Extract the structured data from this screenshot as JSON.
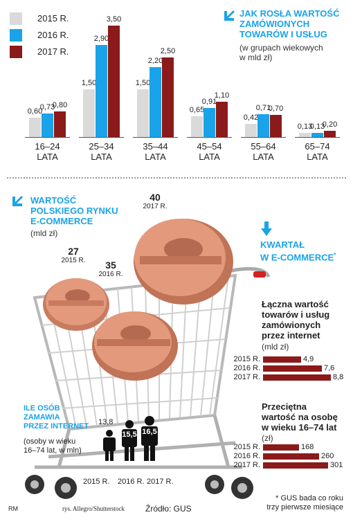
{
  "colors": {
    "y2015": "#dadada",
    "y2016": "#1aa3e8",
    "y2017": "#8b1a1a",
    "accent": "#1aa3e8"
  },
  "legend": [
    {
      "label": "2015 R.",
      "color": "#dadada"
    },
    {
      "label": "2016 R.",
      "color": "#1aa3e8"
    },
    {
      "label": "2017 R.",
      "color": "#8b1a1a"
    }
  ],
  "chart1": {
    "title_lines": [
      "JAK ROSŁA WARTOŚĆ",
      "ZAMÓWIONYCH",
      "TOWARÓW I USŁUG"
    ],
    "subtitle_lines": [
      "(w grupach wiekowych",
      "w mld zł)"
    ]
  },
  "chart_data": [
    {
      "type": "bar",
      "categories": [
        "16–24\nLATA",
        "25–34\nLATA",
        "35–44\nLATA",
        "45–54\nLATA",
        "55–64\nLATA",
        "65–74\nLATA"
      ],
      "category_lines": [
        [
          "16–24",
          "LATA"
        ],
        [
          "25–34",
          "LATA"
        ],
        [
          "35–44",
          "LATA"
        ],
        [
          "45–54",
          "LATA"
        ],
        [
          "55–64",
          "LATA"
        ],
        [
          "65–74",
          "LATA"
        ]
      ],
      "series": [
        {
          "name": "2015 R.",
          "values": [
            0.6,
            1.5,
            1.5,
            0.65,
            0.42,
            0.13
          ],
          "labels": [
            "0,60",
            "1,50",
            "1,50",
            "0,65",
            "0,42",
            "0,13"
          ]
        },
        {
          "name": "2016 R.",
          "values": [
            0.73,
            2.9,
            2.2,
            0.91,
            0.71,
            0.13
          ],
          "labels": [
            "0,73",
            "2,90",
            "2,20",
            "0,91",
            "0,71",
            "0,13"
          ]
        },
        {
          "name": "2017 R.",
          "values": [
            0.8,
            3.5,
            2.5,
            1.1,
            0.7,
            0.2
          ],
          "labels": [
            "0,80",
            "3,50",
            "2,50",
            "1,10",
            "0,70",
            "0,20"
          ]
        }
      ]
    },
    {
      "type": "bar",
      "orientation": "horizontal",
      "categories": [
        "2015 R.",
        "2016 R.",
        "2017 R."
      ],
      "values": [
        4.9,
        7.6,
        8.8
      ],
      "labels": [
        "4,9",
        "7,6",
        "8,8"
      ]
    },
    {
      "type": "bar",
      "orientation": "horizontal",
      "categories": [
        "2015 R.",
        "2016 R.",
        "2017 R."
      ],
      "values": [
        168,
        260,
        301
      ],
      "labels": [
        "168",
        "260",
        "301"
      ]
    }
  ],
  "ecommerce": {
    "title_lines": [
      "WARTOŚĆ",
      "POLSKIEGO RYNKU",
      "E-COMMERCE"
    ],
    "unit": "(mld zł)",
    "items": [
      {
        "value": "27",
        "year": "2015 R."
      },
      {
        "value": "35",
        "year": "2016 R."
      },
      {
        "value": "40",
        "year": "2017 R."
      }
    ]
  },
  "quarter": {
    "title_lines": [
      "KWARTAŁ",
      "W E-COMMERCE"
    ],
    "footnote_mark": "*",
    "chart1_title_lines": [
      "Łączna wartość",
      "towarów i usług",
      "zamówionych",
      "przez internet"
    ],
    "chart1_unit": "(mld zł)",
    "chart2_title_lines": [
      "Przeciętna",
      "wartość na osobę",
      "w wieku 16–74 lat"
    ],
    "chart2_unit": "(zł)"
  },
  "people": {
    "title_lines": [
      "ILE OSÓB",
      "ZAMAWIA",
      "PRZEZ INTERNET"
    ],
    "sub_lines": [
      "(osoby w wieku",
      "16–74 lat, w mln)"
    ],
    "values": [
      "13,8",
      "15,5",
      "16,5"
    ],
    "years": [
      "2015 R.",
      "2016 R.",
      "2017 R."
    ]
  },
  "footer": {
    "rm": "RM",
    "credit": "rys. Allegro/Shutterstock",
    "source": "Źródło: GUS",
    "note_lines": [
      "* GUS bada co roku",
      "trzy pierwsze miesiące"
    ]
  }
}
